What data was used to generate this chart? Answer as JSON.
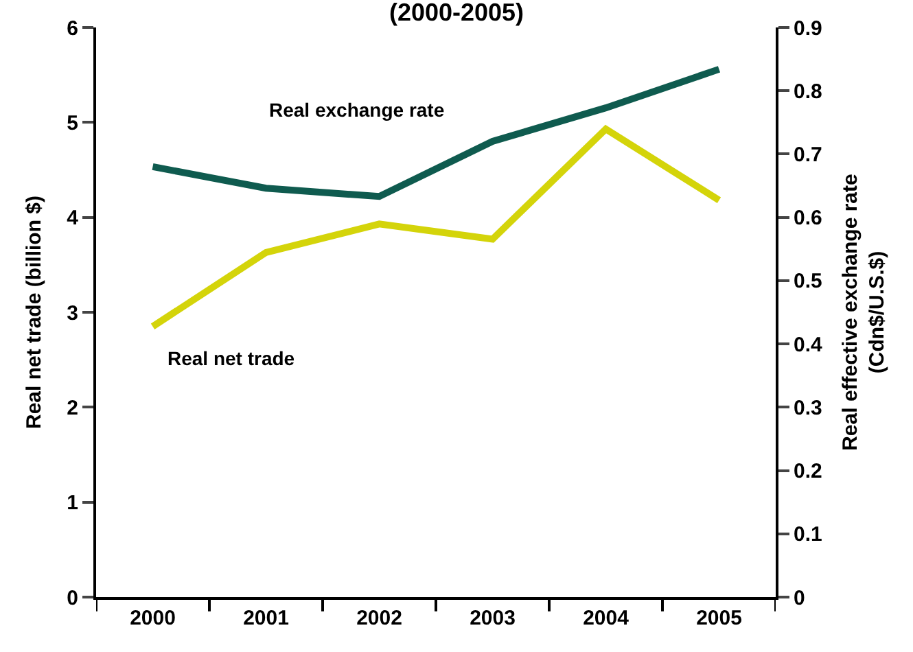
{
  "chart_data": {
    "type": "line",
    "title": "(2000-2005)",
    "ylabel": "Real net trade (billion $)",
    "y2label": "Real effective exchange rate\n(Cdn$/U.S.$)",
    "categories": [
      "2000",
      "2001",
      "2002",
      "2003",
      "2004",
      "2005"
    ],
    "series": [
      {
        "name": "Real exchange rate",
        "color": "#0f5b4f",
        "axis": "y2",
        "values": [
          0.68,
          0.646,
          0.633,
          0.72,
          0.773,
          0.834
        ]
      },
      {
        "name": "Real net trade",
        "color": "#d4d40a",
        "values": [
          2.85,
          3.63,
          3.93,
          3.77,
          4.93,
          4.18
        ]
      }
    ],
    "ylim": [
      0,
      6
    ],
    "yticks": [
      0,
      1,
      2,
      3,
      4,
      5,
      6
    ],
    "y2lim": [
      0,
      0.9
    ],
    "y2ticks": [
      0,
      0.1,
      0.2,
      0.3,
      0.4,
      0.5,
      0.6,
      0.7,
      0.8,
      0.9
    ],
    "legend": false,
    "marker": "none",
    "line_style": "solid"
  }
}
